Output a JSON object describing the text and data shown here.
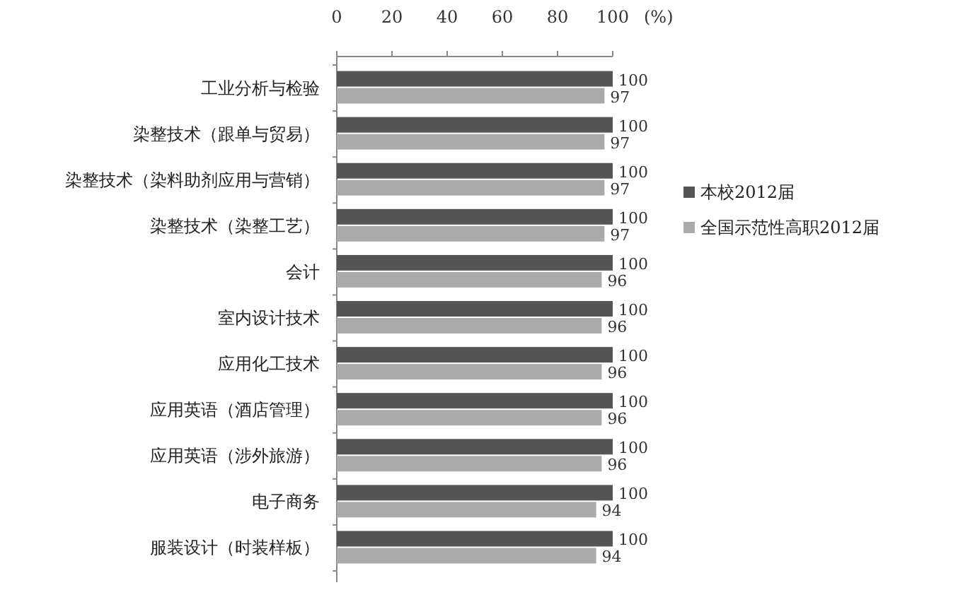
{
  "chart_data": {
    "type": "bar",
    "orientation": "horizontal",
    "xlabel": "(%)",
    "categories": [
      "工业分析与检验",
      "染整技术（跟单与贸易）",
      "染整技术（染料助剂应用与营销）",
      "染整技术（染整工艺）",
      "会计",
      "室内设计技术",
      "应用化工技术",
      "应用英语（酒店管理）",
      "应用英语（涉外旅游）",
      "电子商务",
      "服装设计（时装样板）"
    ],
    "series": [
      {
        "name": "本校2012届",
        "color": "#555555",
        "values": [
          100,
          100,
          100,
          100,
          100,
          100,
          100,
          100,
          100,
          100,
          100
        ]
      },
      {
        "name": "全国示范性高职2012届",
        "color": "#aaaaaa",
        "values": [
          97,
          97,
          97,
          97,
          96,
          96,
          96,
          96,
          96,
          94,
          94
        ]
      }
    ],
    "xlim": [
      0,
      100
    ],
    "xticks": [
      0,
      20,
      40,
      60,
      80,
      100
    ],
    "data_labels": true,
    "legend": "right",
    "grid": false
  }
}
